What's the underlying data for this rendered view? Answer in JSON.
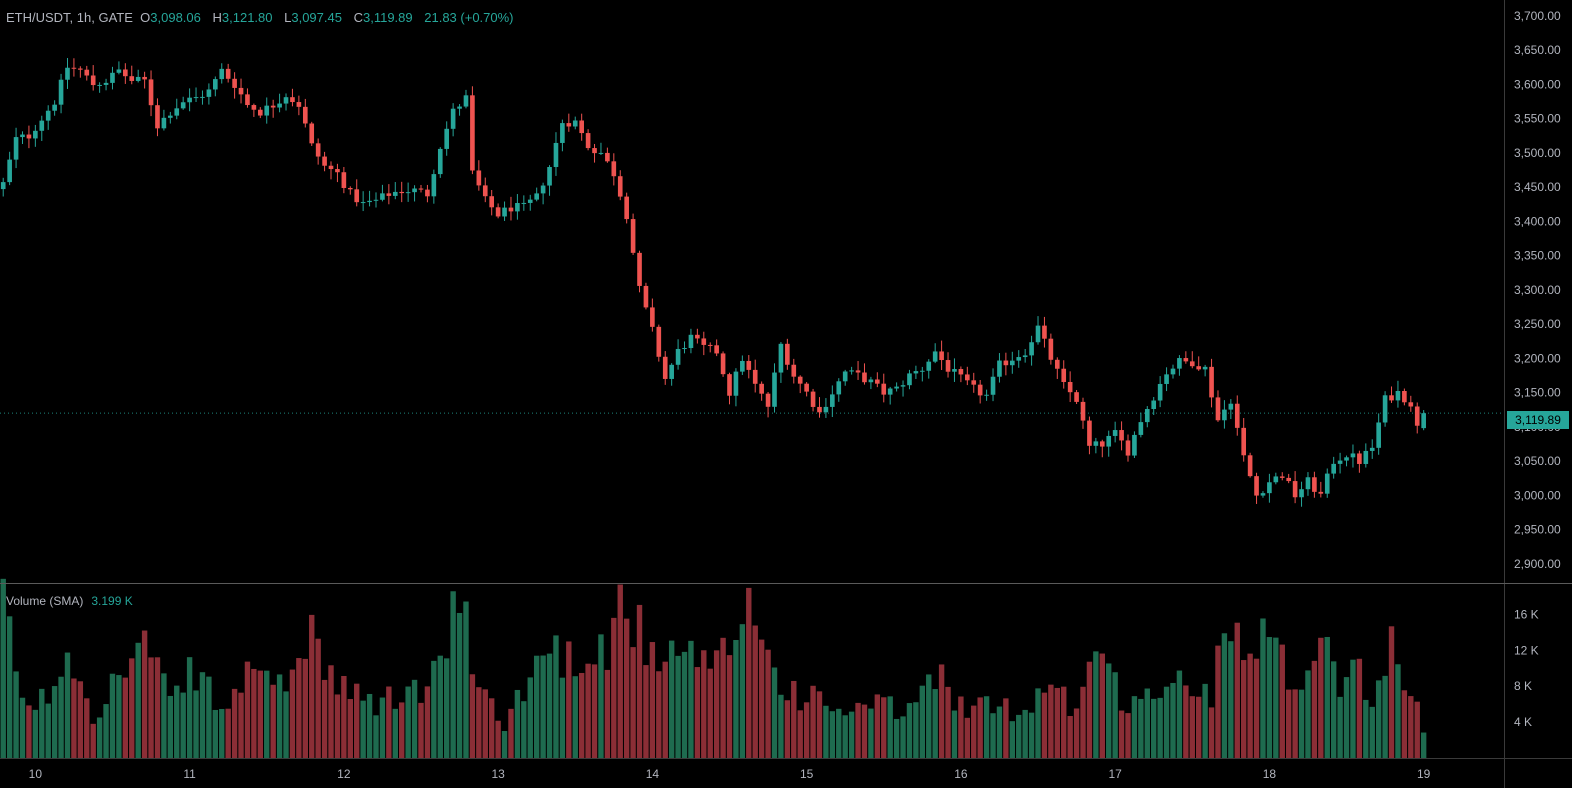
{
  "header": {
    "symbol": "ETH/USDT, 1h, GATE",
    "open_label": "O",
    "open": "3,098.06",
    "high_label": "H",
    "high": "3,121.80",
    "low_label": "L",
    "low": "3,097.45",
    "close_label": "C",
    "close": "3,119.89",
    "change": "21.83 (+0.70%)"
  },
  "volume_legend": {
    "label": "Volume (SMA)",
    "value": "3.199 K"
  },
  "colors": {
    "up": "#26a69a",
    "down": "#ef5350",
    "vol_up": "#1e6b4f",
    "vol_down": "#8b2e36",
    "background": "#000000",
    "axis_text": "#b2b5be",
    "border": "#3a3a3a"
  },
  "chart_data": [
    {
      "type": "candlestick",
      "title": "ETH/USDT, 1h, GATE",
      "x_unit": "hour",
      "y_ticks": [
        2900,
        2950,
        3000,
        3050,
        3100,
        3150,
        3200,
        3250,
        3300,
        3350,
        3400,
        3450,
        3500,
        3550,
        3600,
        3650,
        3700
      ],
      "y_tick_labels": [
        "2,900.00",
        "2,950.00",
        "3,000.00",
        "3,050.00",
        "3,100.00",
        "3,150.00",
        "3,200.00",
        "3,250.00",
        "3,300.00",
        "3,350.00",
        "3,400.00",
        "3,450.00",
        "3,500.00",
        "3,550.00",
        "3,600.00",
        "3,650.00",
        "3,700.00"
      ],
      "ylim": [
        2872,
        3723
      ],
      "x_ticks": [
        {
          "label": "10",
          "x": 5
        },
        {
          "label": "11",
          "x": 29
        },
        {
          "label": "12",
          "x": 53
        },
        {
          "label": "13",
          "x": 77
        },
        {
          "label": "14",
          "x": 101
        },
        {
          "label": "15",
          "x": 125
        },
        {
          "label": "16",
          "x": 149
        },
        {
          "label": "17",
          "x": 173
        },
        {
          "label": "18",
          "x": 197
        },
        {
          "label": "19",
          "x": 221
        }
      ],
      "xlim": [
        -0.5,
        233.5
      ],
      "last_price": 3119.89,
      "last_price_label": "3,119.89",
      "anchors": [
        [
          0,
          3455
        ],
        [
          2,
          3520
        ],
        [
          4,
          3525
        ],
        [
          6,
          3550
        ],
        [
          8,
          3575
        ],
        [
          10,
          3625
        ],
        [
          12,
          3620
        ],
        [
          14,
          3600
        ],
        [
          16,
          3605
        ],
        [
          18,
          3620
        ],
        [
          20,
          3605
        ],
        [
          22,
          3605
        ],
        [
          24,
          3540
        ],
        [
          26,
          3560
        ],
        [
          28,
          3575
        ],
        [
          30,
          3580
        ],
        [
          32,
          3590
        ],
        [
          34,
          3620
        ],
        [
          36,
          3600
        ],
        [
          38,
          3570
        ],
        [
          40,
          3560
        ],
        [
          42,
          3570
        ],
        [
          44,
          3585
        ],
        [
          46,
          3570
        ],
        [
          48,
          3510
        ],
        [
          50,
          3480
        ],
        [
          52,
          3470
        ],
        [
          54,
          3440
        ],
        [
          56,
          3425
        ],
        [
          58,
          3430
        ],
        [
          60,
          3440
        ],
        [
          62,
          3445
        ],
        [
          64,
          3445
        ],
        [
          66,
          3440
        ],
        [
          68,
          3510
        ],
        [
          70,
          3560
        ],
        [
          72,
          3580
        ],
        [
          73,
          3470
        ],
        [
          75,
          3430
        ],
        [
          77,
          3410
        ],
        [
          79,
          3420
        ],
        [
          81,
          3420
        ],
        [
          83,
          3435
        ],
        [
          85,
          3480
        ],
        [
          87,
          3545
        ],
        [
          89,
          3545
        ],
        [
          91,
          3510
        ],
        [
          93,
          3500
        ],
        [
          95,
          3470
        ],
        [
          97,
          3410
        ],
        [
          99,
          3300
        ],
        [
          101,
          3240
        ],
        [
          103,
          3170
        ],
        [
          105,
          3210
        ],
        [
          107,
          3230
        ],
        [
          109,
          3215
        ],
        [
          111,
          3210
        ],
        [
          113,
          3150
        ],
        [
          115,
          3200
        ],
        [
          117,
          3160
        ],
        [
          119,
          3130
        ],
        [
          121,
          3220
        ],
        [
          123,
          3175
        ],
        [
          125,
          3150
        ],
        [
          127,
          3120
        ],
        [
          129,
          3150
        ],
        [
          131,
          3180
        ],
        [
          133,
          3175
        ],
        [
          135,
          3165
        ],
        [
          137,
          3150
        ],
        [
          139,
          3155
        ],
        [
          141,
          3175
        ],
        [
          143,
          3185
        ],
        [
          145,
          3210
        ],
        [
          147,
          3185
        ],
        [
          149,
          3170
        ],
        [
          151,
          3155
        ],
        [
          153,
          3145
        ],
        [
          155,
          3190
        ],
        [
          157,
          3200
        ],
        [
          159,
          3210
        ],
        [
          161,
          3245
        ],
        [
          163,
          3200
        ],
        [
          165,
          3160
        ],
        [
          167,
          3140
        ],
        [
          169,
          3070
        ],
        [
          171,
          3075
        ],
        [
          173,
          3090
        ],
        [
          175,
          3065
        ],
        [
          177,
          3110
        ],
        [
          179,
          3145
        ],
        [
          181,
          3180
        ],
        [
          183,
          3195
        ],
        [
          185,
          3195
        ],
        [
          187,
          3185
        ],
        [
          189,
          3110
        ],
        [
          191,
          3140
        ],
        [
          193,
          3055
        ],
        [
          195,
          3000
        ],
        [
          197,
          3020
        ],
        [
          199,
          3030
        ],
        [
          201,
          3000
        ],
        [
          203,
          3020
        ],
        [
          205,
          3000
        ],
        [
          207,
          3050
        ],
        [
          209,
          3060
        ],
        [
          211,
          3050
        ],
        [
          213,
          3070
        ],
        [
          215,
          3140
        ],
        [
          217,
          3150
        ],
        [
          219,
          3135
        ],
        [
          220,
          3098.06
        ],
        [
          221,
          3119.89
        ]
      ]
    },
    {
      "type": "bar",
      "title": "Volume (SMA)",
      "y_ticks": [
        4000,
        8000,
        12000,
        16000
      ],
      "y_tick_labels": [
        "4 K",
        "8 K",
        "12 K",
        "16 K"
      ],
      "ylim": [
        0,
        18500
      ],
      "anchors": [
        [
          0,
          16000
        ],
        [
          4,
          5000
        ],
        [
          8,
          8000
        ],
        [
          10,
          13000
        ],
        [
          14,
          5000
        ],
        [
          18,
          9000
        ],
        [
          22,
          13000
        ],
        [
          26,
          6000
        ],
        [
          30,
          10000
        ],
        [
          34,
          5000
        ],
        [
          38,
          9000
        ],
        [
          40,
          12000
        ],
        [
          44,
          6000
        ],
        [
          48,
          16000
        ],
        [
          50,
          9000
        ],
        [
          54,
          7000
        ],
        [
          58,
          6000
        ],
        [
          62,
          7000
        ],
        [
          66,
          8000
        ],
        [
          68,
          10000
        ],
        [
          70,
          17500
        ],
        [
          72,
          14000
        ],
        [
          74,
          8000
        ],
        [
          78,
          4000
        ],
        [
          82,
          9000
        ],
        [
          84,
          12000
        ],
        [
          86,
          12000
        ],
        [
          88,
          11000
        ],
        [
          92,
          13000
        ],
        [
          94,
          12000
        ],
        [
          96,
          17000
        ],
        [
          98,
          16000
        ],
        [
          100,
          12000
        ],
        [
          102,
          9000
        ],
        [
          104,
          11000
        ],
        [
          106,
          12000
        ],
        [
          110,
          9000
        ],
        [
          114,
          14000
        ],
        [
          116,
          17500
        ],
        [
          118,
          15000
        ],
        [
          120,
          9000
        ],
        [
          124,
          7000
        ],
        [
          128,
          6000
        ],
        [
          132,
          5000
        ],
        [
          136,
          6000
        ],
        [
          140,
          5000
        ],
        [
          144,
          8000
        ],
        [
          146,
          9000
        ],
        [
          150,
          5000
        ],
        [
          154,
          6000
        ],
        [
          158,
          5000
        ],
        [
          162,
          8000
        ],
        [
          164,
          9000
        ],
        [
          166,
          5000
        ],
        [
          170,
          12000
        ],
        [
          172,
          9000
        ],
        [
          174,
          7000
        ],
        [
          176,
          6000
        ],
        [
          180,
          8000
        ],
        [
          184,
          8000
        ],
        [
          188,
          7000
        ],
        [
          190,
          17000
        ],
        [
          192,
          14000
        ],
        [
          196,
          15000
        ],
        [
          198,
          12000
        ],
        [
          200,
          10000
        ],
        [
          202,
          8000
        ],
        [
          204,
          14000
        ],
        [
          206,
          12000
        ],
        [
          208,
          8000
        ],
        [
          210,
          12000
        ],
        [
          212,
          6000
        ],
        [
          214,
          9000
        ],
        [
          216,
          13000
        ],
        [
          218,
          9000
        ],
        [
          220,
          6000
        ],
        [
          221,
          3199
        ]
      ]
    }
  ]
}
